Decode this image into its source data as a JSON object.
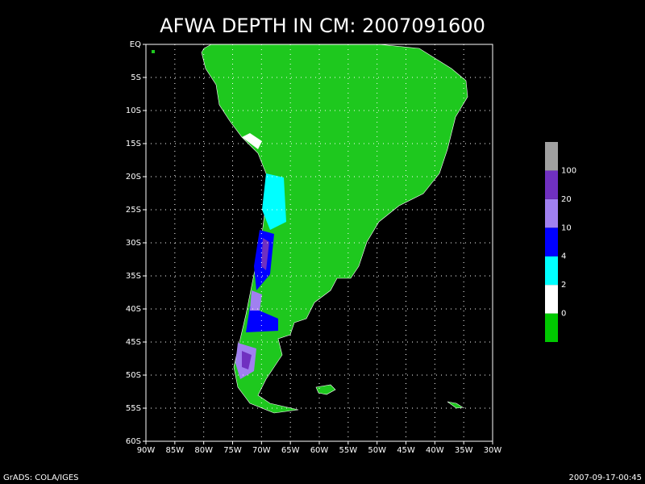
{
  "title": "AFWA DEPTH IN CM: 2007091600",
  "map": {
    "xlim": [
      -90,
      -30
    ],
    "ylim": [
      -60,
      0
    ],
    "xticks": [
      {
        "value": -90,
        "label": "90W"
      },
      {
        "value": -85,
        "label": "85W"
      },
      {
        "value": -80,
        "label": "80W"
      },
      {
        "value": -75,
        "label": "75W"
      },
      {
        "value": -70,
        "label": "70W"
      },
      {
        "value": -65,
        "label": "65W"
      },
      {
        "value": -60,
        "label": "60W"
      },
      {
        "value": -55,
        "label": "55W"
      },
      {
        "value": -50,
        "label": "50W"
      },
      {
        "value": -45,
        "label": "45W"
      },
      {
        "value": -40,
        "label": "40W"
      },
      {
        "value": -35,
        "label": "35W"
      },
      {
        "value": -30,
        "label": "30W"
      }
    ],
    "yticks": [
      {
        "value": 0,
        "label": "EQ"
      },
      {
        "value": -5,
        "label": "5S"
      },
      {
        "value": -10,
        "label": "10S"
      },
      {
        "value": -15,
        "label": "15S"
      },
      {
        "value": -20,
        "label": "20S"
      },
      {
        "value": -25,
        "label": "25S"
      },
      {
        "value": -30,
        "label": "30S"
      },
      {
        "value": -35,
        "label": "35S"
      },
      {
        "value": -40,
        "label": "40S"
      },
      {
        "value": -45,
        "label": "45S"
      },
      {
        "value": -50,
        "label": "50S"
      },
      {
        "value": -55,
        "label": "55S"
      },
      {
        "value": -60,
        "label": "60S"
      }
    ],
    "grid": true
  },
  "colorbar": {
    "colors": [
      "#00c800",
      "#ffffff",
      "#00ffff",
      "#0000ff",
      "#a080f0",
      "#7030c0",
      "#a0a0a0"
    ],
    "levels": [
      0,
      2,
      4,
      10,
      20,
      100
    ]
  },
  "footer": {
    "left": "GrADS: COLA/IGES",
    "right": "2007-09-17-00:45"
  }
}
